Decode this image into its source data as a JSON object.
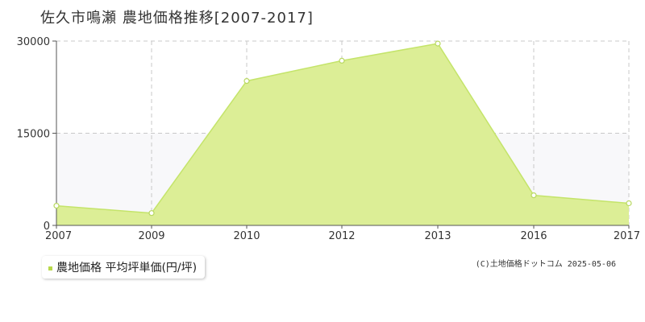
{
  "title": "佐久市鳴瀬  農地価格推移[2007-2017]",
  "legend": {
    "label": "農地価格 平均坪単価(円/坪)"
  },
  "copyright": "(C)土地価格ドットコム 2025-05-06",
  "colors": {
    "area_fill": "#dcee96",
    "area_stroke": "#c4e46a",
    "point_stroke": "#b8d860",
    "point_fill": "#ffffff",
    "grid": "#c8c8c8",
    "band": "#f8f8fa",
    "axis": "#555555",
    "legend_marker": "#b8d84a"
  },
  "chart_data": {
    "type": "area",
    "x": [
      "2007",
      "2009",
      "2010",
      "2012",
      "2013",
      "2016",
      "2017"
    ],
    "series": [
      {
        "name": "農地価格 平均坪単価(円/坪)",
        "values": [
          3200,
          2000,
          23500,
          26800,
          29600,
          4900,
          3600
        ]
      }
    ],
    "ylim": [
      0,
      30000
    ],
    "yticks": [
      0,
      15000,
      30000
    ],
    "grid": true,
    "legend_position": "bottom-left"
  }
}
